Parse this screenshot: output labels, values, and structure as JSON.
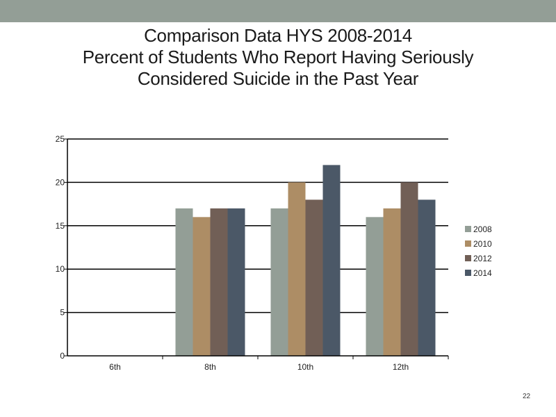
{
  "slide": {
    "page_number": "22"
  },
  "chart_data": {
    "type": "bar",
    "title_lines": [
      "Comparison Data HYS 2008-2014",
      "Percent of Students Who Report Having Seriously",
      "Considered Suicide in the Past Year"
    ],
    "xlabel": "",
    "ylabel": "",
    "categories": [
      "6th",
      "8th",
      "10th",
      "12th"
    ],
    "ylim": [
      0,
      25
    ],
    "yticks": [
      0,
      5,
      10,
      15,
      20,
      25
    ],
    "grid": true,
    "legend_position": "right",
    "series": [
      {
        "name": "2008",
        "color": "#939e96",
        "values": [
          null,
          17,
          17,
          16
        ]
      },
      {
        "name": "2010",
        "color": "#ad8d65",
        "values": [
          null,
          16,
          20,
          17
        ]
      },
      {
        "name": "2012",
        "color": "#715f56",
        "values": [
          null,
          17,
          18,
          20
        ]
      },
      {
        "name": "2014",
        "color": "#4b5867",
        "values": [
          null,
          17,
          22,
          18
        ]
      }
    ]
  }
}
